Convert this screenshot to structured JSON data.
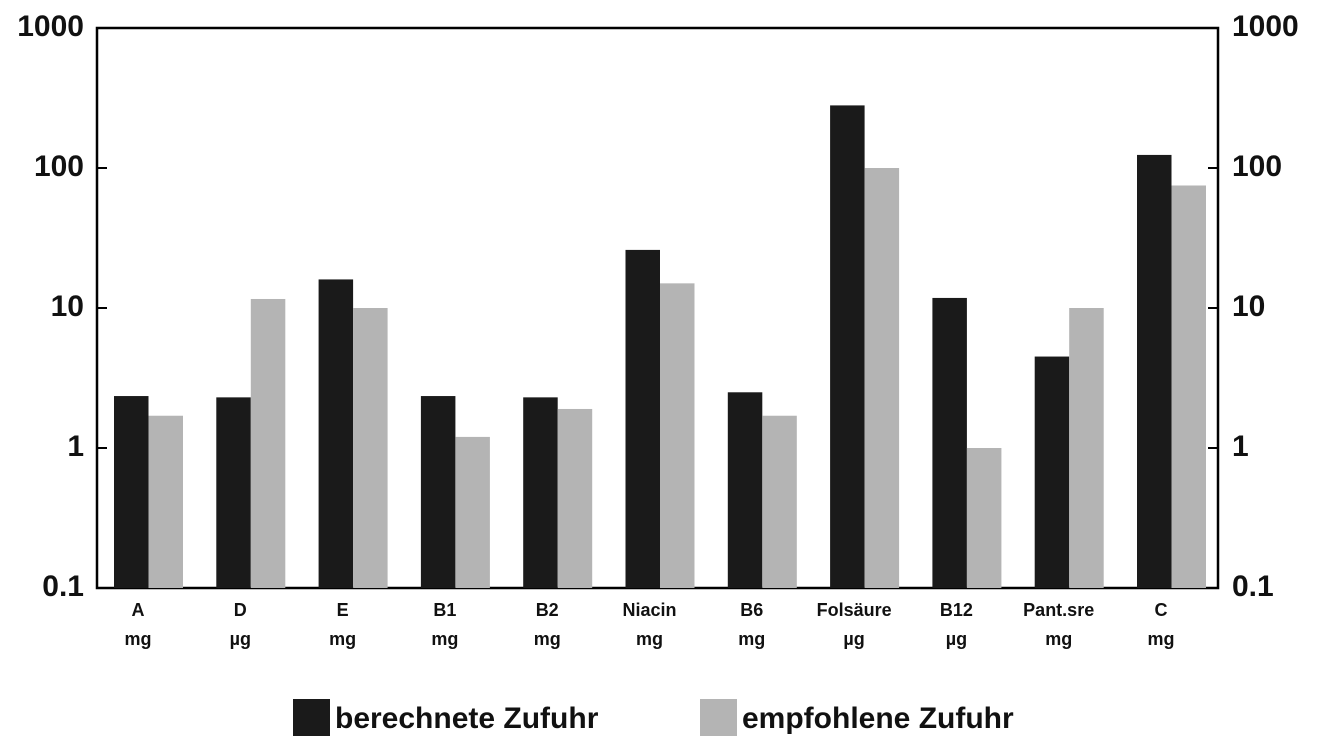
{
  "chart_data": {
    "type": "bar",
    "categories": [
      "A",
      "D",
      "E",
      "B1",
      "B2",
      "Niacin",
      "B6",
      "Folsäure",
      "B12",
      "Pant.sre",
      "C"
    ],
    "units": [
      "mg",
      "µg",
      "mg",
      "mg",
      "mg",
      "mg",
      "mg",
      "µg",
      "µg",
      "mg",
      "mg"
    ],
    "series": [
      {
        "name": "berechnete Zufuhr",
        "color": "#1a1a1a",
        "values": [
          2.35,
          2.3,
          16,
          2.35,
          2.3,
          26,
          2.5,
          280,
          11.8,
          4.5,
          124
        ]
      },
      {
        "name": "empfohlene Zufuhr",
        "color": "#b4b4b4",
        "values": [
          1.7,
          11.6,
          10,
          1.2,
          1.9,
          15,
          1.7,
          100,
          1.0,
          10,
          75
        ]
      }
    ],
    "ylim": [
      0.1,
      1000
    ],
    "yticks": [
      0.1,
      1,
      10,
      100,
      1000
    ],
    "y2lim": [
      0.1,
      1000
    ],
    "y2ticks": [
      0.1,
      1,
      10,
      100,
      1000
    ],
    "log_scale": true,
    "legend": "bottom"
  }
}
